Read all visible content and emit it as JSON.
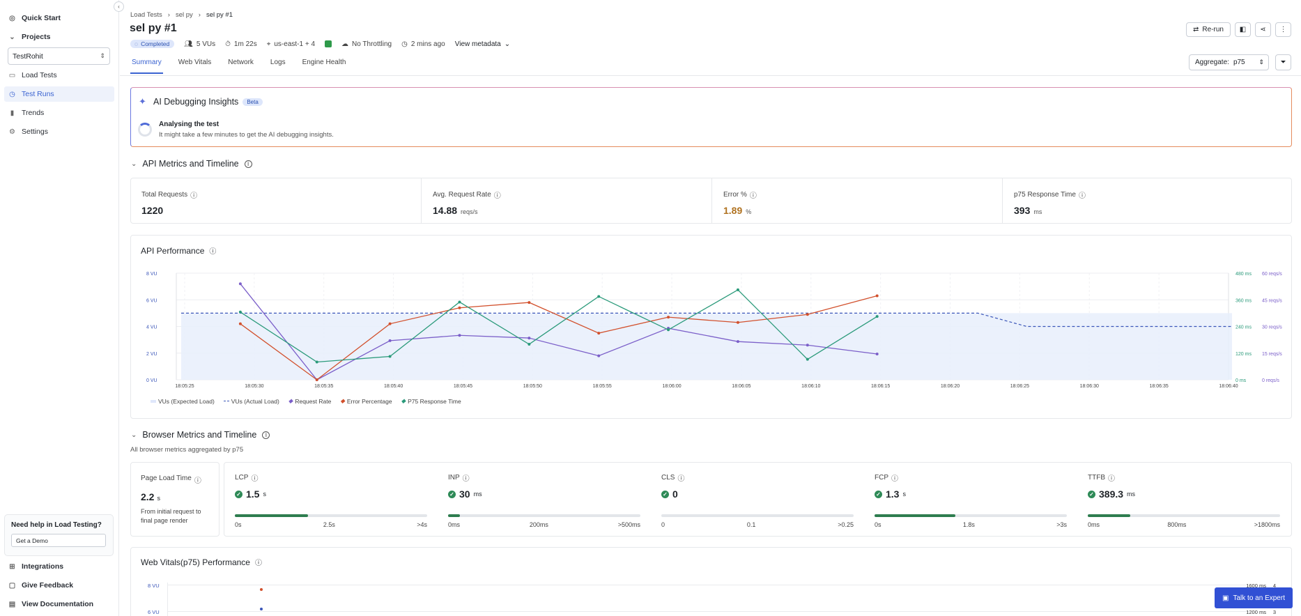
{
  "sidebar": {
    "quick_start": "Quick Start",
    "projects": "Projects",
    "project_value": "TestRohit",
    "items": [
      "Load Tests",
      "Test Runs",
      "Trends",
      "Settings"
    ],
    "help_title": "Need help in Load Testing?",
    "demo_button": "Get a Demo",
    "bottom": [
      "Integrations",
      "Give Feedback",
      "View Documentation"
    ]
  },
  "breadcrumb": [
    "Load Tests",
    "sel py",
    "sel py #1"
  ],
  "title": "sel py #1",
  "meta": {
    "status": "Completed",
    "vus": "5 VUs",
    "duration": "1m 22s",
    "region": "us-east-1 + 4",
    "throttling": "No Throttling",
    "time_ago": "2 mins ago",
    "view_metadata": "View metadata"
  },
  "tabs": [
    "Summary",
    "Web Vitals",
    "Network",
    "Logs",
    "Engine Health"
  ],
  "actions": {
    "rerun": "Re-run"
  },
  "aggregate": {
    "label": "Aggregate:",
    "value": "p75"
  },
  "ai": {
    "title": "AI Debugging Insights",
    "beta": "Beta",
    "status": "Analysing the test",
    "note": "It might take a few minutes to get the AI debugging insights."
  },
  "api_section": "API Metrics and Timeline",
  "metrics": [
    {
      "label": "Total Requests",
      "value": "1220",
      "unit": ""
    },
    {
      "label": "Avg. Request Rate",
      "value": "14.88",
      "unit": "reqs/s"
    },
    {
      "label": "Error %",
      "value": "1.89",
      "unit": "%"
    },
    {
      "label": "p75 Response Time",
      "value": "393",
      "unit": "ms"
    }
  ],
  "api_chart_title": "API Performance",
  "chart_data": {
    "type": "line",
    "x": [
      "18:05:25",
      "18:05:30",
      "18:05:35",
      "18:05:40",
      "18:05:45",
      "18:05:50",
      "18:05:55",
      "18:06:00",
      "18:06:05",
      "18:06:10",
      "18:06:15",
      "18:06:20",
      "18:06:25",
      "18:06:30",
      "18:06:35",
      "18:06:40"
    ],
    "y_left_ticks": [
      "0 VU",
      "2 VU",
      "4 VU",
      "6 VU",
      "8 VU"
    ],
    "y_right1_ticks": [
      "0 ms",
      "120 ms",
      "240 ms",
      "360 ms",
      "480 ms"
    ],
    "y_right2_ticks": [
      "0 reqs/s",
      "15 reqs/s",
      "30 reqs/s",
      "45 reqs/s",
      "60 reqs/s"
    ],
    "legend": [
      "VUs (Expected Load)",
      "VUs (Actual Load)",
      "Request Rate",
      "Error Percentage",
      "P75 Response Time"
    ],
    "colors": {
      "expected": "#dfe7fb",
      "actual": "#3a55b8",
      "request": "#7b5fc9",
      "error": "#d2502c",
      "p75": "#2a9a7a"
    },
    "series": [
      {
        "name": "VUs (Expected Load)",
        "points": [
          [
            0,
            5
          ],
          [
            8,
            5
          ],
          [
            9,
            5
          ],
          [
            10,
            5
          ],
          [
            11,
            5
          ],
          [
            12,
            4
          ],
          [
            13,
            4
          ],
          [
            14,
            4
          ],
          [
            15,
            4
          ]
        ]
      },
      {
        "name": "VUs (Actual Load)",
        "points": [
          [
            0,
            5
          ],
          [
            11,
            5
          ],
          [
            12,
            4
          ],
          [
            15,
            4
          ]
        ]
      },
      {
        "name": "Request Rate",
        "points": [
          [
            0.85,
            54
          ],
          [
            1.95,
            0
          ],
          [
            3,
            22
          ],
          [
            4,
            25
          ],
          [
            5,
            23.5
          ],
          [
            6,
            13.5
          ],
          [
            7,
            29
          ],
          [
            8,
            21.5
          ],
          [
            9,
            19.5
          ],
          [
            10,
            14.5
          ]
        ]
      },
      {
        "name": "Error Percentage",
        "points": [
          [
            0.85,
            4.2
          ],
          [
            1.95,
            0
          ],
          [
            3,
            4.2
          ],
          [
            4,
            5.4
          ],
          [
            5,
            5.8
          ],
          [
            6,
            3.5
          ],
          [
            7,
            4.7
          ],
          [
            8,
            4.3
          ],
          [
            9,
            4.9
          ],
          [
            10,
            6.3
          ]
        ]
      },
      {
        "name": "P75 Response Time",
        "points": [
          [
            0.85,
            305
          ],
          [
            1.95,
            80
          ],
          [
            3,
            105
          ],
          [
            4,
            350
          ],
          [
            5,
            160
          ],
          [
            6,
            375
          ],
          [
            7,
            225
          ],
          [
            8,
            405
          ],
          [
            9,
            92
          ],
          [
            10,
            285
          ]
        ]
      }
    ]
  },
  "browser_section": "Browser Metrics and Timeline",
  "browser_note": "All browser metrics aggregated by p75",
  "page_load": {
    "label": "Page Load Time",
    "value": "2.2",
    "unit": "s",
    "note": "From initial request to final page render"
  },
  "vitals": [
    {
      "label": "LCP",
      "value": "1.5",
      "unit": "s",
      "fill": 0.38,
      "ticks": [
        "0s",
        "2.5s",
        ">4s"
      ]
    },
    {
      "label": "INP",
      "value": "30",
      "unit": "ms",
      "fill": 0.06,
      "ticks": [
        "0ms",
        "200ms",
        ">500ms"
      ]
    },
    {
      "label": "CLS",
      "value": "0",
      "unit": "",
      "fill": 0,
      "ticks": [
        "0",
        "0.1",
        ">0.25"
      ]
    },
    {
      "label": "FCP",
      "value": "1.3",
      "unit": "s",
      "fill": 0.42,
      "ticks": [
        "0s",
        "1.8s",
        ">3s"
      ]
    },
    {
      "label": "TTFB",
      "value": "389.3",
      "unit": "ms",
      "fill": 0.22,
      "ticks": [
        "0ms",
        "800ms",
        ">1800ms"
      ]
    }
  ],
  "web_vitals_title": "Web Vitals(p75) Performance",
  "web_vitals_axes": {
    "left": [
      "8 VU",
      "6 VU"
    ],
    "right": [
      "1600 ms",
      "1200 ms"
    ],
    "right2": [
      "4",
      "3"
    ]
  },
  "expert": "Talk to an Expert"
}
